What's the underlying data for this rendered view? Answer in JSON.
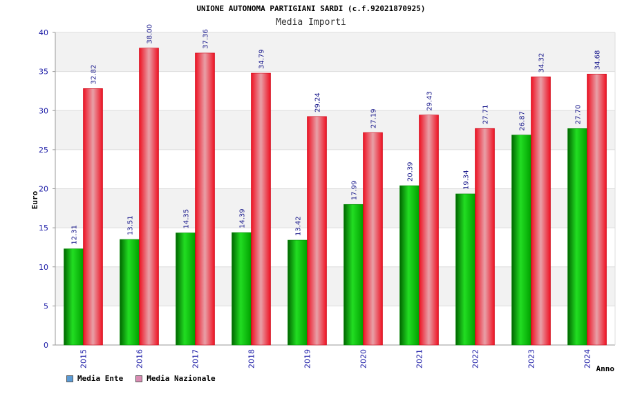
{
  "chart_data": {
    "type": "bar",
    "title": "UNIONE AUTONOMA PARTIGIANI SARDI (c.f.92021870925)",
    "subtitle": "Media Importi",
    "xlabel": "Anno",
    "ylabel": "Euro",
    "ylim": [
      0,
      40
    ],
    "yticks": [
      "0",
      "5",
      "10",
      "15",
      "20",
      "25",
      "30",
      "35",
      "40"
    ],
    "categories": [
      "2015",
      "2016",
      "2017",
      "2018",
      "2019",
      "2020",
      "2021",
      "2022",
      "2023",
      "2024"
    ],
    "series": [
      {
        "name": "Media Ente",
        "color": "#00aa00",
        "values": [
          12.31,
          13.51,
          14.35,
          14.39,
          13.42,
          17.99,
          20.39,
          19.34,
          26.87,
          27.7
        ],
        "labels": [
          "12.31",
          "13.51",
          "14.35",
          "14.39",
          "13.42",
          "17.99",
          "20.39",
          "19.34",
          "26.87",
          "27.70"
        ]
      },
      {
        "name": "Media Nazionale",
        "color": "#ee1122",
        "values": [
          32.82,
          38.0,
          37.36,
          34.79,
          29.24,
          27.19,
          29.43,
          27.71,
          34.32,
          34.68
        ],
        "labels": [
          "32.82",
          "38.00",
          "37.36",
          "34.79",
          "29.24",
          "27.19",
          "29.43",
          "27.71",
          "34.32",
          "34.68"
        ]
      }
    ],
    "grid": true,
    "legend": "bottom-left",
    "legend_swatch_colors": [
      "#5b9bd5",
      "#d98cb3"
    ]
  }
}
